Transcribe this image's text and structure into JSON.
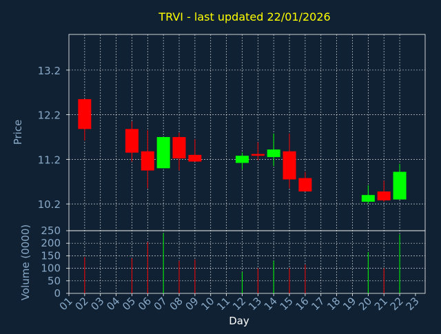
{
  "chart_data": {
    "type": "candlestick",
    "title": "TRVI - last updated 22/01/2026",
    "xlabel": "Day",
    "price_ylabel": "Price",
    "volume_ylabel": "Volume (0000)",
    "x_ticks": [
      "01",
      "02",
      "03",
      "04",
      "05",
      "06",
      "07",
      "08",
      "09",
      "10",
      "11",
      "12",
      "13",
      "14",
      "15",
      "16",
      "17",
      "18",
      "19",
      "20",
      "21",
      "22",
      "23"
    ],
    "price_yticks": [
      10.2,
      11.2,
      12.2,
      13.2
    ],
    "price_yticks_labels": [
      "10.2",
      "11.2",
      "12.2",
      "13.2"
    ],
    "price_ylim": [
      9.6,
      14.0
    ],
    "volume_yticks": [
      0,
      50,
      100,
      150,
      200,
      250
    ],
    "volume_yticks_labels": [
      "0",
      "50",
      "100",
      "150",
      "200",
      "250"
    ],
    "volume_ylim": [
      0,
      250
    ],
    "grid": true,
    "colors": {
      "background": "#0f2133",
      "plot_border": "#ffffff",
      "grid": "#ffffff",
      "title": "#ffff00",
      "axis_text": "#8aaac8",
      "up": "#00ff00",
      "down": "#ff0000"
    },
    "candles": [
      {
        "day": 2,
        "open": 12.55,
        "close": 11.88,
        "high": 12.55,
        "low": 11.62,
        "volume": 145
      },
      {
        "day": 5,
        "open": 11.88,
        "close": 11.35,
        "high": 12.05,
        "low": 11.15,
        "volume": 140
      },
      {
        "day": 6,
        "open": 11.38,
        "close": 10.95,
        "high": 11.85,
        "low": 10.55,
        "volume": 205
      },
      {
        "day": 7,
        "open": 11.0,
        "close": 11.7,
        "high": 11.7,
        "low": 11.0,
        "volume": 240
      },
      {
        "day": 8,
        "open": 11.7,
        "close": 11.22,
        "high": 11.8,
        "low": 10.95,
        "volume": 130
      },
      {
        "day": 9,
        "open": 11.3,
        "close": 11.15,
        "high": 11.65,
        "low": 11.15,
        "volume": 135
      },
      {
        "day": 12,
        "open": 11.12,
        "close": 11.28,
        "high": 11.35,
        "low": 10.98,
        "volume": 85
      },
      {
        "day": 13,
        "open": 11.32,
        "close": 11.28,
        "high": 11.58,
        "low": 11.18,
        "volume": 100
      },
      {
        "day": 14,
        "open": 11.25,
        "close": 11.42,
        "high": 11.78,
        "low": 11.05,
        "volume": 130
      },
      {
        "day": 15,
        "open": 11.38,
        "close": 10.75,
        "high": 11.78,
        "low": 10.55,
        "volume": 100
      },
      {
        "day": 16,
        "open": 10.78,
        "close": 10.48,
        "high": 10.92,
        "low": 10.48,
        "volume": 115
      },
      {
        "day": 20,
        "open": 10.25,
        "close": 10.4,
        "high": 10.62,
        "low": 10.2,
        "volume": 165
      },
      {
        "day": 21,
        "open": 10.48,
        "close": 10.28,
        "high": 10.72,
        "low": 10.25,
        "volume": 100
      },
      {
        "day": 22,
        "open": 10.3,
        "close": 10.92,
        "high": 11.1,
        "low": 10.3,
        "volume": 235
      }
    ]
  }
}
